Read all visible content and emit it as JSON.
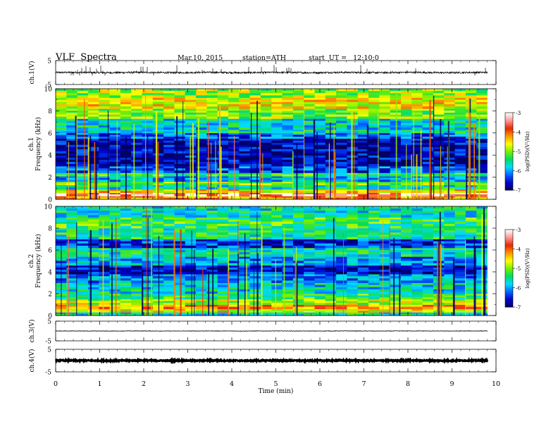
{
  "header": {
    "title": "VLF  Spectra",
    "date": "Mar.10, 2015",
    "station": "station=ATH",
    "start": "start  UT =   12:10:0"
  },
  "chart_data": {
    "type": "heatmap",
    "xlabel": "Time  (min)",
    "xlim": [
      0,
      10
    ],
    "x_ticks": [
      "0",
      "1",
      "2",
      "3",
      "4",
      "5",
      "6",
      "7",
      "8",
      "9",
      "10"
    ],
    "data_end_min": 9.8,
    "waveform_panels": [
      {
        "id": "ch1-waveform",
        "ylabel": "ch.1(V)",
        "ylim": [
          -5,
          5
        ],
        "tick_labels": [
          "5",
          "-5"
        ],
        "baseline": 0,
        "amplitude": 0.35,
        "spike_rate": 0.25
      },
      {
        "id": "ch3-waveform",
        "ylabel": "ch.3(V)",
        "ylim": [
          -5,
          5
        ],
        "tick_labels": [
          "5",
          "-5"
        ],
        "baseline": 0,
        "amplitude": 0.12,
        "spike_rate": 0.0
      },
      {
        "id": "ch4-waveform",
        "ylabel": "ch.4(V)",
        "ylim": [
          -5,
          5
        ],
        "tick_labels": [
          "5",
          "-5"
        ],
        "baseline": 0,
        "amplitude": 0.25,
        "spike_rate": 0.0
      }
    ],
    "spectrogram_panels": [
      {
        "id": "ch1-spectrogram",
        "ylabel_line1": "ch.1",
        "ylabel_line2": "Frequency  (kHz)",
        "ylim": [
          0,
          10
        ],
        "y_ticks": [
          "0",
          "2",
          "4",
          "6",
          "8",
          "10"
        ],
        "bands": [
          {
            "f0": 0.0,
            "f1": 0.3,
            "level": -4.2
          },
          {
            "f0": 0.3,
            "f1": 0.6,
            "level": -3.3
          },
          {
            "f0": 0.6,
            "f1": 0.9,
            "level": -4.5
          },
          {
            "f0": 0.9,
            "f1": 1.3,
            "level": -5.6
          },
          {
            "f0": 1.3,
            "f1": 1.6,
            "level": -5.0
          },
          {
            "f0": 1.6,
            "f1": 2.1,
            "level": -5.9
          },
          {
            "f0": 2.1,
            "f1": 2.4,
            "level": -5.3
          },
          {
            "f0": 2.4,
            "f1": 3.0,
            "level": -6.3
          },
          {
            "f0": 3.0,
            "f1": 5.5,
            "level": -6.7
          },
          {
            "f0": 5.5,
            "f1": 6.0,
            "level": -6.2
          },
          {
            "f0": 6.0,
            "f1": 6.3,
            "level": -5.6
          },
          {
            "f0": 6.3,
            "f1": 7.3,
            "level": -5.7
          },
          {
            "f0": 7.3,
            "f1": 8.2,
            "level": -5.0
          },
          {
            "f0": 8.2,
            "f1": 9.2,
            "level": -4.6
          },
          {
            "f0": 9.2,
            "f1": 10.0,
            "level": -4.9
          }
        ],
        "spike_count": 70
      },
      {
        "id": "ch2-spectrogram",
        "ylabel_line1": "ch.2",
        "ylabel_line2": "Frequency  (kHz)",
        "ylim": [
          0,
          10
        ],
        "y_ticks": [
          "0",
          "2",
          "4",
          "6",
          "8",
          "10"
        ],
        "bands": [
          {
            "f0": 0.0,
            "f1": 0.3,
            "level": -5.6
          },
          {
            "f0": 0.3,
            "f1": 0.6,
            "level": -4.6
          },
          {
            "f0": 0.6,
            "f1": 1.0,
            "level": -4.2
          },
          {
            "f0": 1.0,
            "f1": 1.5,
            "level": -4.8
          },
          {
            "f0": 1.5,
            "f1": 2.0,
            "level": -5.3
          },
          {
            "f0": 2.0,
            "f1": 3.0,
            "level": -5.7
          },
          {
            "f0": 3.0,
            "f1": 3.8,
            "level": -6.0
          },
          {
            "f0": 3.8,
            "f1": 4.6,
            "level": -6.6
          },
          {
            "f0": 4.6,
            "f1": 5.4,
            "level": -6.0
          },
          {
            "f0": 5.4,
            "f1": 6.2,
            "level": -5.6
          },
          {
            "f0": 6.2,
            "f1": 7.0,
            "level": -6.4
          },
          {
            "f0": 7.0,
            "f1": 8.0,
            "level": -5.5
          },
          {
            "f0": 8.0,
            "f1": 9.0,
            "level": -5.3
          },
          {
            "f0": 9.0,
            "f1": 10.0,
            "level": -5.6
          }
        ],
        "spike_count": 55
      }
    ],
    "colorbar": {
      "label": "log(PSD)(V²/Hz)",
      "range": [
        -7,
        -3
      ],
      "ticks": [
        "-3",
        "-4",
        "-5",
        "-6",
        "-7"
      ],
      "colors": [
        "#000060",
        "#0000c8",
        "#0064ff",
        "#00dcff",
        "#00dc64",
        "#78f000",
        "#ffff00",
        "#ff9600",
        "#e62800",
        "#ff9696",
        "#ffffff"
      ]
    }
  }
}
